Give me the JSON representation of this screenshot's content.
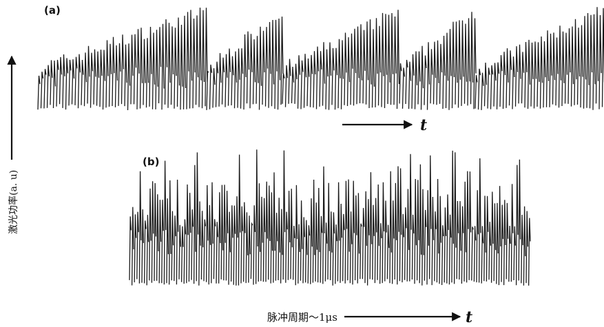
{
  "panel_a": {
    "label": "(a)",
    "time_label": "t"
  },
  "panel_b": {
    "label": "(b)"
  },
  "y_axis_label": "激光功率(a. u)",
  "x_axis": {
    "label": "脉冲周期～1μs",
    "time_label": "t"
  }
}
